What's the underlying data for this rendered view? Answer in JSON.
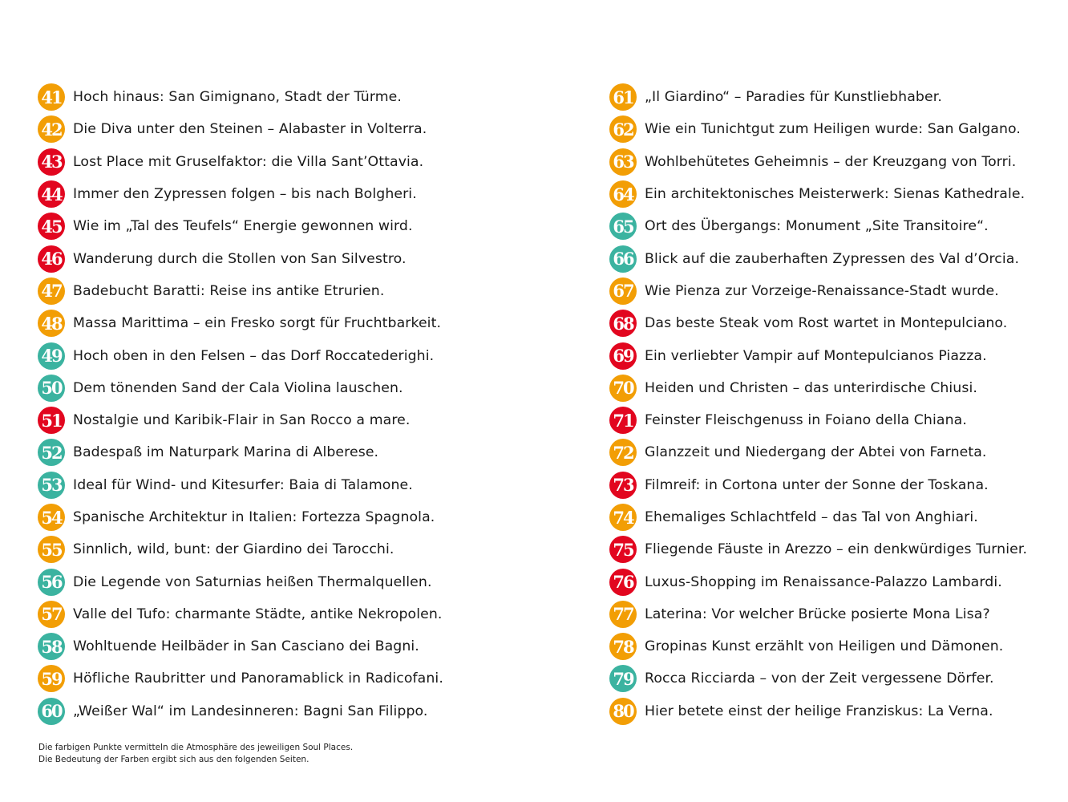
{
  "colors": {
    "orange": "#F29E05",
    "red": "#E2061F",
    "teal": "#3BB3A0"
  },
  "columns": [
    {
      "items": [
        {
          "number": "41",
          "color": "orange",
          "text": "Hoch hinaus: San Gimignano, Stadt der Türme."
        },
        {
          "number": "42",
          "color": "orange",
          "text": "Die Diva unter den Steinen – Alabaster in Volterra."
        },
        {
          "number": "43",
          "color": "red",
          "text": "Lost Place mit Gruselfaktor: die Villa Sant’Ottavia."
        },
        {
          "number": "44",
          "color": "red",
          "text": "Immer den Zypressen folgen – bis nach Bolgheri."
        },
        {
          "number": "45",
          "color": "red",
          "text": "Wie im „Tal des Teufels“ Energie gewonnen wird."
        },
        {
          "number": "46",
          "color": "red",
          "text": "Wanderung durch die Stollen von San Silvestro."
        },
        {
          "number": "47",
          "color": "orange",
          "text": "Badebucht Baratti: Reise ins antike Etrurien."
        },
        {
          "number": "48",
          "color": "orange",
          "text": "Massa Marittima – ein Fresko sorgt für Fruchtbarkeit."
        },
        {
          "number": "49",
          "color": "teal",
          "text": "Hoch oben in den Felsen – das Dorf Roccatederighi."
        },
        {
          "number": "50",
          "color": "teal",
          "text": "Dem tönenden Sand der Cala Violina lauschen."
        },
        {
          "number": "51",
          "color": "red",
          "text": "Nostalgie und Karibik-Flair in San Rocco a mare."
        },
        {
          "number": "52",
          "color": "teal",
          "text": "Badespaß im Naturpark Marina di Alberese."
        },
        {
          "number": "53",
          "color": "teal",
          "text": "Ideal für Wind- und Kitesurfer: Baia di Talamone."
        },
        {
          "number": "54",
          "color": "orange",
          "text": "Spanische Architektur in Italien: Fortezza Spagnola."
        },
        {
          "number": "55",
          "color": "orange",
          "text": "Sinnlich, wild, bunt: der Giardino dei Tarocchi."
        },
        {
          "number": "56",
          "color": "teal",
          "text": "Die Legende von Saturnias heißen Thermalquellen."
        },
        {
          "number": "57",
          "color": "orange",
          "text": "Valle del Tufo: charmante Städte, antike Nekropolen."
        },
        {
          "number": "58",
          "color": "teal",
          "text": "Wohltuende Heilbäder in San Casciano dei Bagni."
        },
        {
          "number": "59",
          "color": "orange",
          "text": "Höfliche Raubritter und Panoramablick in Radicofani."
        },
        {
          "number": "60",
          "color": "teal",
          "text": "„Weißer Wal“ im Landesinneren: Bagni San Filippo."
        }
      ]
    },
    {
      "items": [
        {
          "number": "61",
          "color": "orange",
          "text": "„Il Giardino“ – Paradies für Kunstliebhaber."
        },
        {
          "number": "62",
          "color": "orange",
          "text": "Wie ein Tunichtgut zum Heiligen wurde: San Galgano."
        },
        {
          "number": "63",
          "color": "orange",
          "text": "Wohlbehütetes Geheimnis – der Kreuzgang von Torri."
        },
        {
          "number": "64",
          "color": "orange",
          "text": "Ein architektonisches Meisterwerk: Sienas Kathedrale."
        },
        {
          "number": "65",
          "color": "teal",
          "text": "Ort des Übergangs: Monument „Site Transitoire“."
        },
        {
          "number": "66",
          "color": "teal",
          "text": "Blick auf die zauberhaften Zypressen des Val d’Orcia."
        },
        {
          "number": "67",
          "color": "orange",
          "text": "Wie Pienza zur Vorzeige-Renaissance-Stadt wurde."
        },
        {
          "number": "68",
          "color": "red",
          "text": "Das beste Steak vom Rost wartet in Montepulciano."
        },
        {
          "number": "69",
          "color": "red",
          "text": "Ein verliebter Vampir auf Montepulcianos Piazza."
        },
        {
          "number": "70",
          "color": "orange",
          "text": "Heiden und Christen – das unterirdische Chiusi."
        },
        {
          "number": "71",
          "color": "red",
          "text": "Feinster Fleischgenuss in Foiano della Chiana."
        },
        {
          "number": "72",
          "color": "orange",
          "text": "Glanzzeit und Niedergang der Abtei von Farneta."
        },
        {
          "number": "73",
          "color": "red",
          "text": "Filmreif: in Cortona unter der Sonne der Toskana."
        },
        {
          "number": "74",
          "color": "orange",
          "text": "Ehemaliges Schlachtfeld – das Tal von Anghiari."
        },
        {
          "number": "75",
          "color": "red",
          "text": "Fliegende Fäuste in Arezzo – ein denkwürdiges Turnier."
        },
        {
          "number": "76",
          "color": "red",
          "text": "Luxus-Shopping im Renaissance-Palazzo Lambardi."
        },
        {
          "number": "77",
          "color": "orange",
          "text": "Laterina: Vor welcher Brücke posierte Mona Lisa?"
        },
        {
          "number": "78",
          "color": "orange",
          "text": "Gropinas Kunst erzählt von Heiligen und Dämonen."
        },
        {
          "number": "79",
          "color": "teal",
          "text": "Rocca Ricciarda – von der Zeit vergessene Dörfer."
        },
        {
          "number": "80",
          "color": "orange",
          "text": "Hier betete einst der heilige Franziskus: La Verna."
        }
      ]
    }
  ],
  "footnote": {
    "line1": "Die farbigen Punkte vermitteln die Atmosphäre des jeweiligen Soul Places.",
    "line2": "Die Bedeutung der Farben ergibt sich aus den folgenden Seiten."
  }
}
